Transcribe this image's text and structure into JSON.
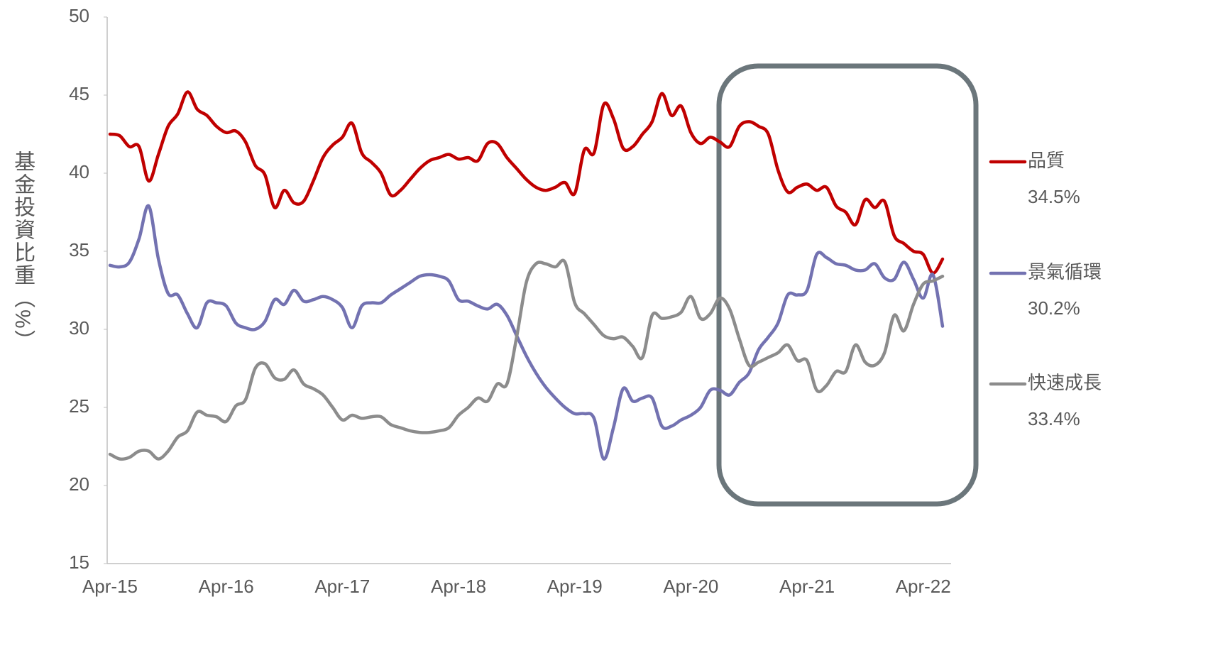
{
  "chart_data": {
    "type": "line",
    "y_label": "基金投資比重（%）",
    "categories": [
      "Apr-15",
      null,
      null,
      null,
      null,
      null,
      null,
      null,
      null,
      null,
      null,
      null,
      "Apr-16",
      null,
      null,
      null,
      null,
      null,
      null,
      null,
      null,
      null,
      null,
      null,
      "Apr-17",
      null,
      null,
      null,
      null,
      null,
      null,
      null,
      null,
      null,
      null,
      null,
      "Apr-18",
      null,
      null,
      null,
      null,
      null,
      null,
      null,
      null,
      null,
      null,
      null,
      "Apr-19",
      null,
      null,
      null,
      null,
      null,
      null,
      null,
      null,
      null,
      null,
      null,
      "Apr-20",
      null,
      null,
      null,
      null,
      null,
      null,
      null,
      null,
      null,
      null,
      null,
      "Apr-21",
      null,
      null,
      null,
      null,
      null,
      null,
      null,
      null,
      null,
      null,
      null,
      "Apr-22",
      null,
      null
    ],
    "ylim": [
      15,
      50
    ],
    "yticks": [
      15,
      20,
      25,
      30,
      35,
      40,
      45,
      50
    ],
    "series": [
      {
        "name": "品質",
        "color": "#c00000",
        "label": "34.5%",
        "values": [
          42.5,
          42.4,
          41.7,
          41.7,
          39.5,
          41.2,
          43.0,
          43.8,
          45.2,
          44.1,
          43.7,
          43.0,
          42.6,
          42.7,
          42.0,
          40.5,
          39.9,
          37.8,
          38.9,
          38.1,
          38.2,
          39.5,
          41.0,
          41.8,
          42.3,
          43.2,
          41.3,
          40.7,
          40.0,
          38.6,
          38.9,
          39.6,
          40.3,
          40.8,
          41.0,
          41.2,
          40.9,
          41.0,
          40.8,
          41.9,
          41.9,
          41.0,
          40.3,
          39.6,
          39.1,
          38.9,
          39.1,
          39.4,
          38.7,
          41.5,
          41.3,
          44.4,
          43.5,
          41.6,
          41.7,
          42.5,
          43.3,
          45.1,
          43.7,
          44.3,
          42.6,
          41.9,
          42.3,
          42.0,
          41.7,
          43.0,
          43.3,
          43.0,
          42.5,
          40.2,
          38.8,
          39.1,
          39.3,
          38.9,
          39.1,
          37.9,
          37.5,
          36.7,
          38.3,
          37.8,
          38.2,
          36.0,
          35.5,
          35.0,
          34.8,
          33.6,
          34.5
        ]
      },
      {
        "name": "景氣循環",
        "color": "#7372b1",
        "label": "30.2%",
        "values": [
          34.1,
          34.0,
          34.3,
          35.8,
          37.9,
          34.5,
          32.3,
          32.2,
          31.0,
          30.1,
          31.7,
          31.7,
          31.5,
          30.4,
          30.1,
          30.0,
          30.5,
          31.9,
          31.6,
          32.5,
          31.8,
          31.9,
          32.1,
          31.9,
          31.4,
          30.1,
          31.5,
          31.7,
          31.7,
          32.2,
          32.6,
          33.0,
          33.4,
          33.5,
          33.4,
          33.1,
          31.9,
          31.8,
          31.5,
          31.3,
          31.6,
          30.9,
          29.6,
          28.3,
          27.2,
          26.3,
          25.6,
          25.0,
          24.6,
          24.6,
          24.3,
          21.7,
          23.7,
          26.2,
          25.4,
          25.6,
          25.6,
          23.8,
          23.8,
          24.2,
          24.5,
          25.0,
          26.1,
          26.1,
          25.8,
          26.6,
          27.2,
          28.7,
          29.5,
          30.4,
          32.2,
          32.2,
          32.5,
          34.8,
          34.6,
          34.2,
          34.1,
          33.8,
          33.8,
          34.2,
          33.3,
          33.2,
          34.3,
          33.2,
          32.0,
          33.5,
          30.2
        ]
      },
      {
        "name": "快速成長",
        "color": "#8c8c8c",
        "label": "33.4%",
        "values": [
          22.0,
          21.7,
          21.8,
          22.2,
          22.2,
          21.7,
          22.2,
          23.1,
          23.5,
          24.7,
          24.5,
          24.4,
          24.1,
          25.1,
          25.5,
          27.5,
          27.8,
          26.9,
          26.8,
          27.4,
          26.5,
          26.2,
          25.8,
          25.0,
          24.2,
          24.5,
          24.3,
          24.4,
          24.4,
          23.9,
          23.7,
          23.5,
          23.4,
          23.4,
          23.5,
          23.7,
          24.5,
          25.0,
          25.6,
          25.4,
          26.5,
          26.5,
          29.5,
          33.0,
          34.2,
          34.2,
          34.0,
          34.3,
          31.7,
          31.0,
          30.3,
          29.6,
          29.4,
          29.5,
          28.9,
          28.2,
          30.9,
          30.7,
          30.8,
          31.1,
          32.1,
          30.7,
          31.0,
          32.0,
          31.3,
          29.4,
          27.7,
          27.9,
          28.2,
          28.5,
          29.0,
          28.0,
          28.0,
          26.1,
          26.4,
          27.3,
          27.3,
          29.0,
          27.9,
          27.7,
          28.5,
          30.9,
          29.9,
          31.6,
          32.9,
          33.1,
          33.4
        ]
      }
    ]
  }
}
